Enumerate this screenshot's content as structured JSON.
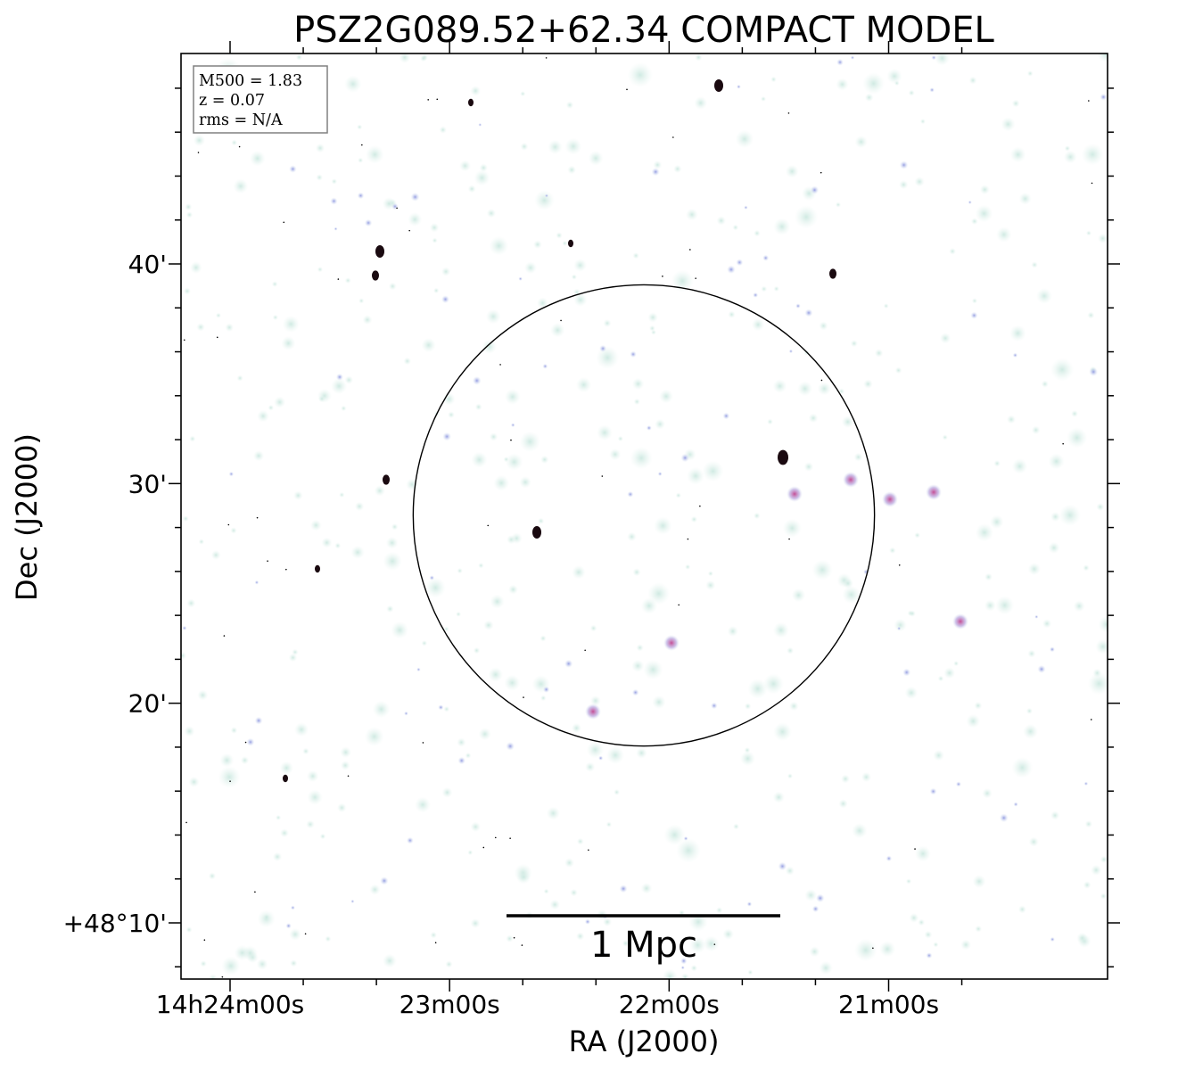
{
  "chart_data": {
    "type": "image",
    "title": "PSZ2G089.52+62.34 COMPACT MODEL",
    "xlabel": "RA (J2000)",
    "ylabel": "Dec (J2000)",
    "x_ticks": [
      {
        "label": "14h24m00s",
        "ra_sec": 0
      },
      {
        "label": "23m00s",
        "ra_sec": 60
      },
      {
        "label": "22m00s",
        "ra_sec": 120
      },
      {
        "label": "21m00s",
        "ra_sec": 180
      }
    ],
    "y_ticks": [
      {
        "label": "40'",
        "dec_arcmin": 40
      },
      {
        "label": "30'",
        "dec_arcmin": 30
      },
      {
        "label": "20'",
        "dec_arcmin": 20
      },
      {
        "label": "+48°10'",
        "dec_arcmin": 10
      }
    ],
    "info_box": [
      "M500 = 1.83",
      "z = 0.07",
      "rms = N/A"
    ],
    "scalebar_label": "1 Mpc",
    "circle_radius_arcmin": 10.5,
    "colors": {
      "faint": "#d6ece6",
      "medium": "#b9bfe6",
      "bright": "#c35bb1",
      "peak": "#000000"
    }
  }
}
